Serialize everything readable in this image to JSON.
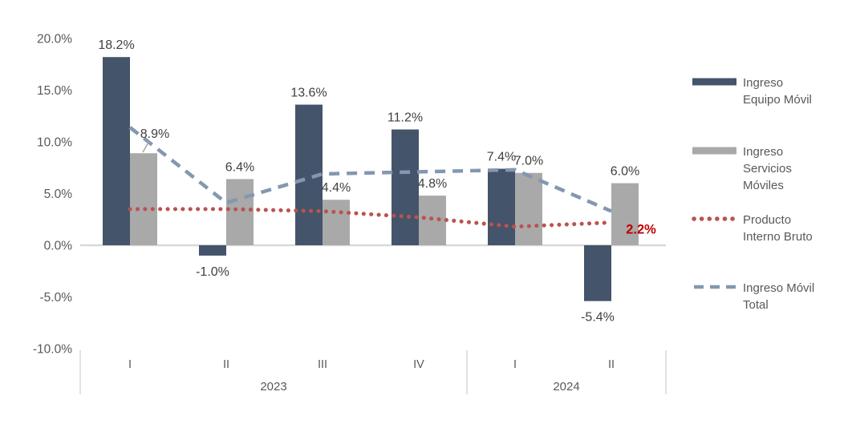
{
  "chart_data": {
    "type": "combo-bar-line",
    "categories": [
      "I",
      "II",
      "III",
      "IV",
      "I",
      "II"
    ],
    "category_groups": [
      {
        "label": "2023",
        "from": 0,
        "to": 3
      },
      {
        "label": "2024",
        "from": 4,
        "to": 5
      }
    ],
    "ylim": [
      -10,
      20
    ],
    "grid": "off",
    "legend_position": "right",
    "yticks": [
      {
        "value": 20,
        "label": "20.0%"
      },
      {
        "value": 15,
        "label": "15.0%"
      },
      {
        "value": 10,
        "label": "10.0%"
      },
      {
        "value": 5,
        "label": "5.0%"
      },
      {
        "value": 0,
        "label": "0.0%"
      },
      {
        "value": -5,
        "label": "-5.0%"
      },
      {
        "value": -10,
        "label": "-10.0%"
      }
    ],
    "series": [
      {
        "name": "Ingreso Equipo Móvil",
        "type": "bar",
        "color": "#44546A",
        "values": [
          18.2,
          -1.0,
          13.6,
          11.2,
          7.4,
          -5.4
        ],
        "labels": [
          "18.2%",
          "-1.0%",
          "13.6%",
          "11.2%",
          "7.4%",
          "-5.4%"
        ]
      },
      {
        "name": "Ingreso Servicios Móviles",
        "type": "bar",
        "color": "#A9A9A9",
        "values": [
          8.9,
          6.4,
          4.4,
          4.8,
          7.0,
          6.0
        ],
        "labels": [
          "8.9%",
          "6.4%",
          "4.4%",
          "4.8%",
          "7.0%",
          "6.0%"
        ],
        "label_adjust": {
          "0": {
            "dx": 14,
            "dy": -9,
            "leader": [
              178,
              190,
              186,
              176
            ]
          }
        }
      },
      {
        "name": "Producto Interno Bruto",
        "type": "line-dotted",
        "color": "#B9534F",
        "values": [
          3.5,
          3.5,
          3.3,
          2.7,
          1.8,
          2.2
        ],
        "end_label": {
          "text": "2.2%",
          "color": "#C00000",
          "dx": 37,
          "dy": 14
        }
      },
      {
        "name": "Ingreso Móvil Total",
        "type": "line-dashed",
        "color": "#8497B0",
        "values": [
          11.4,
          4.1,
          6.9,
          7.1,
          7.3,
          3.3
        ]
      }
    ]
  },
  "legend": {
    "items": [
      {
        "swatch": "bar",
        "color": "#44546A",
        "lines": [
          "Ingreso",
          "Equipo Móvil"
        ]
      },
      {
        "swatch": "bar",
        "color": "#A9A9A9",
        "lines": [
          "Ingreso",
          "Servicios",
          "Móviles"
        ]
      },
      {
        "swatch": "dotted",
        "color": "#B9534F",
        "lines": [
          "Producto",
          "Interno Bruto"
        ]
      },
      {
        "swatch": "dashed",
        "color": "#8497B0",
        "lines": [
          "Ingreso Móvil",
          "Total"
        ]
      }
    ]
  },
  "colors": {
    "axis_line": "#D9D9D9",
    "divider_line": "#D9D9D9",
    "tick_text": "#595959",
    "label_text": "#404040",
    "leader_line": "#A6A6A6"
  }
}
